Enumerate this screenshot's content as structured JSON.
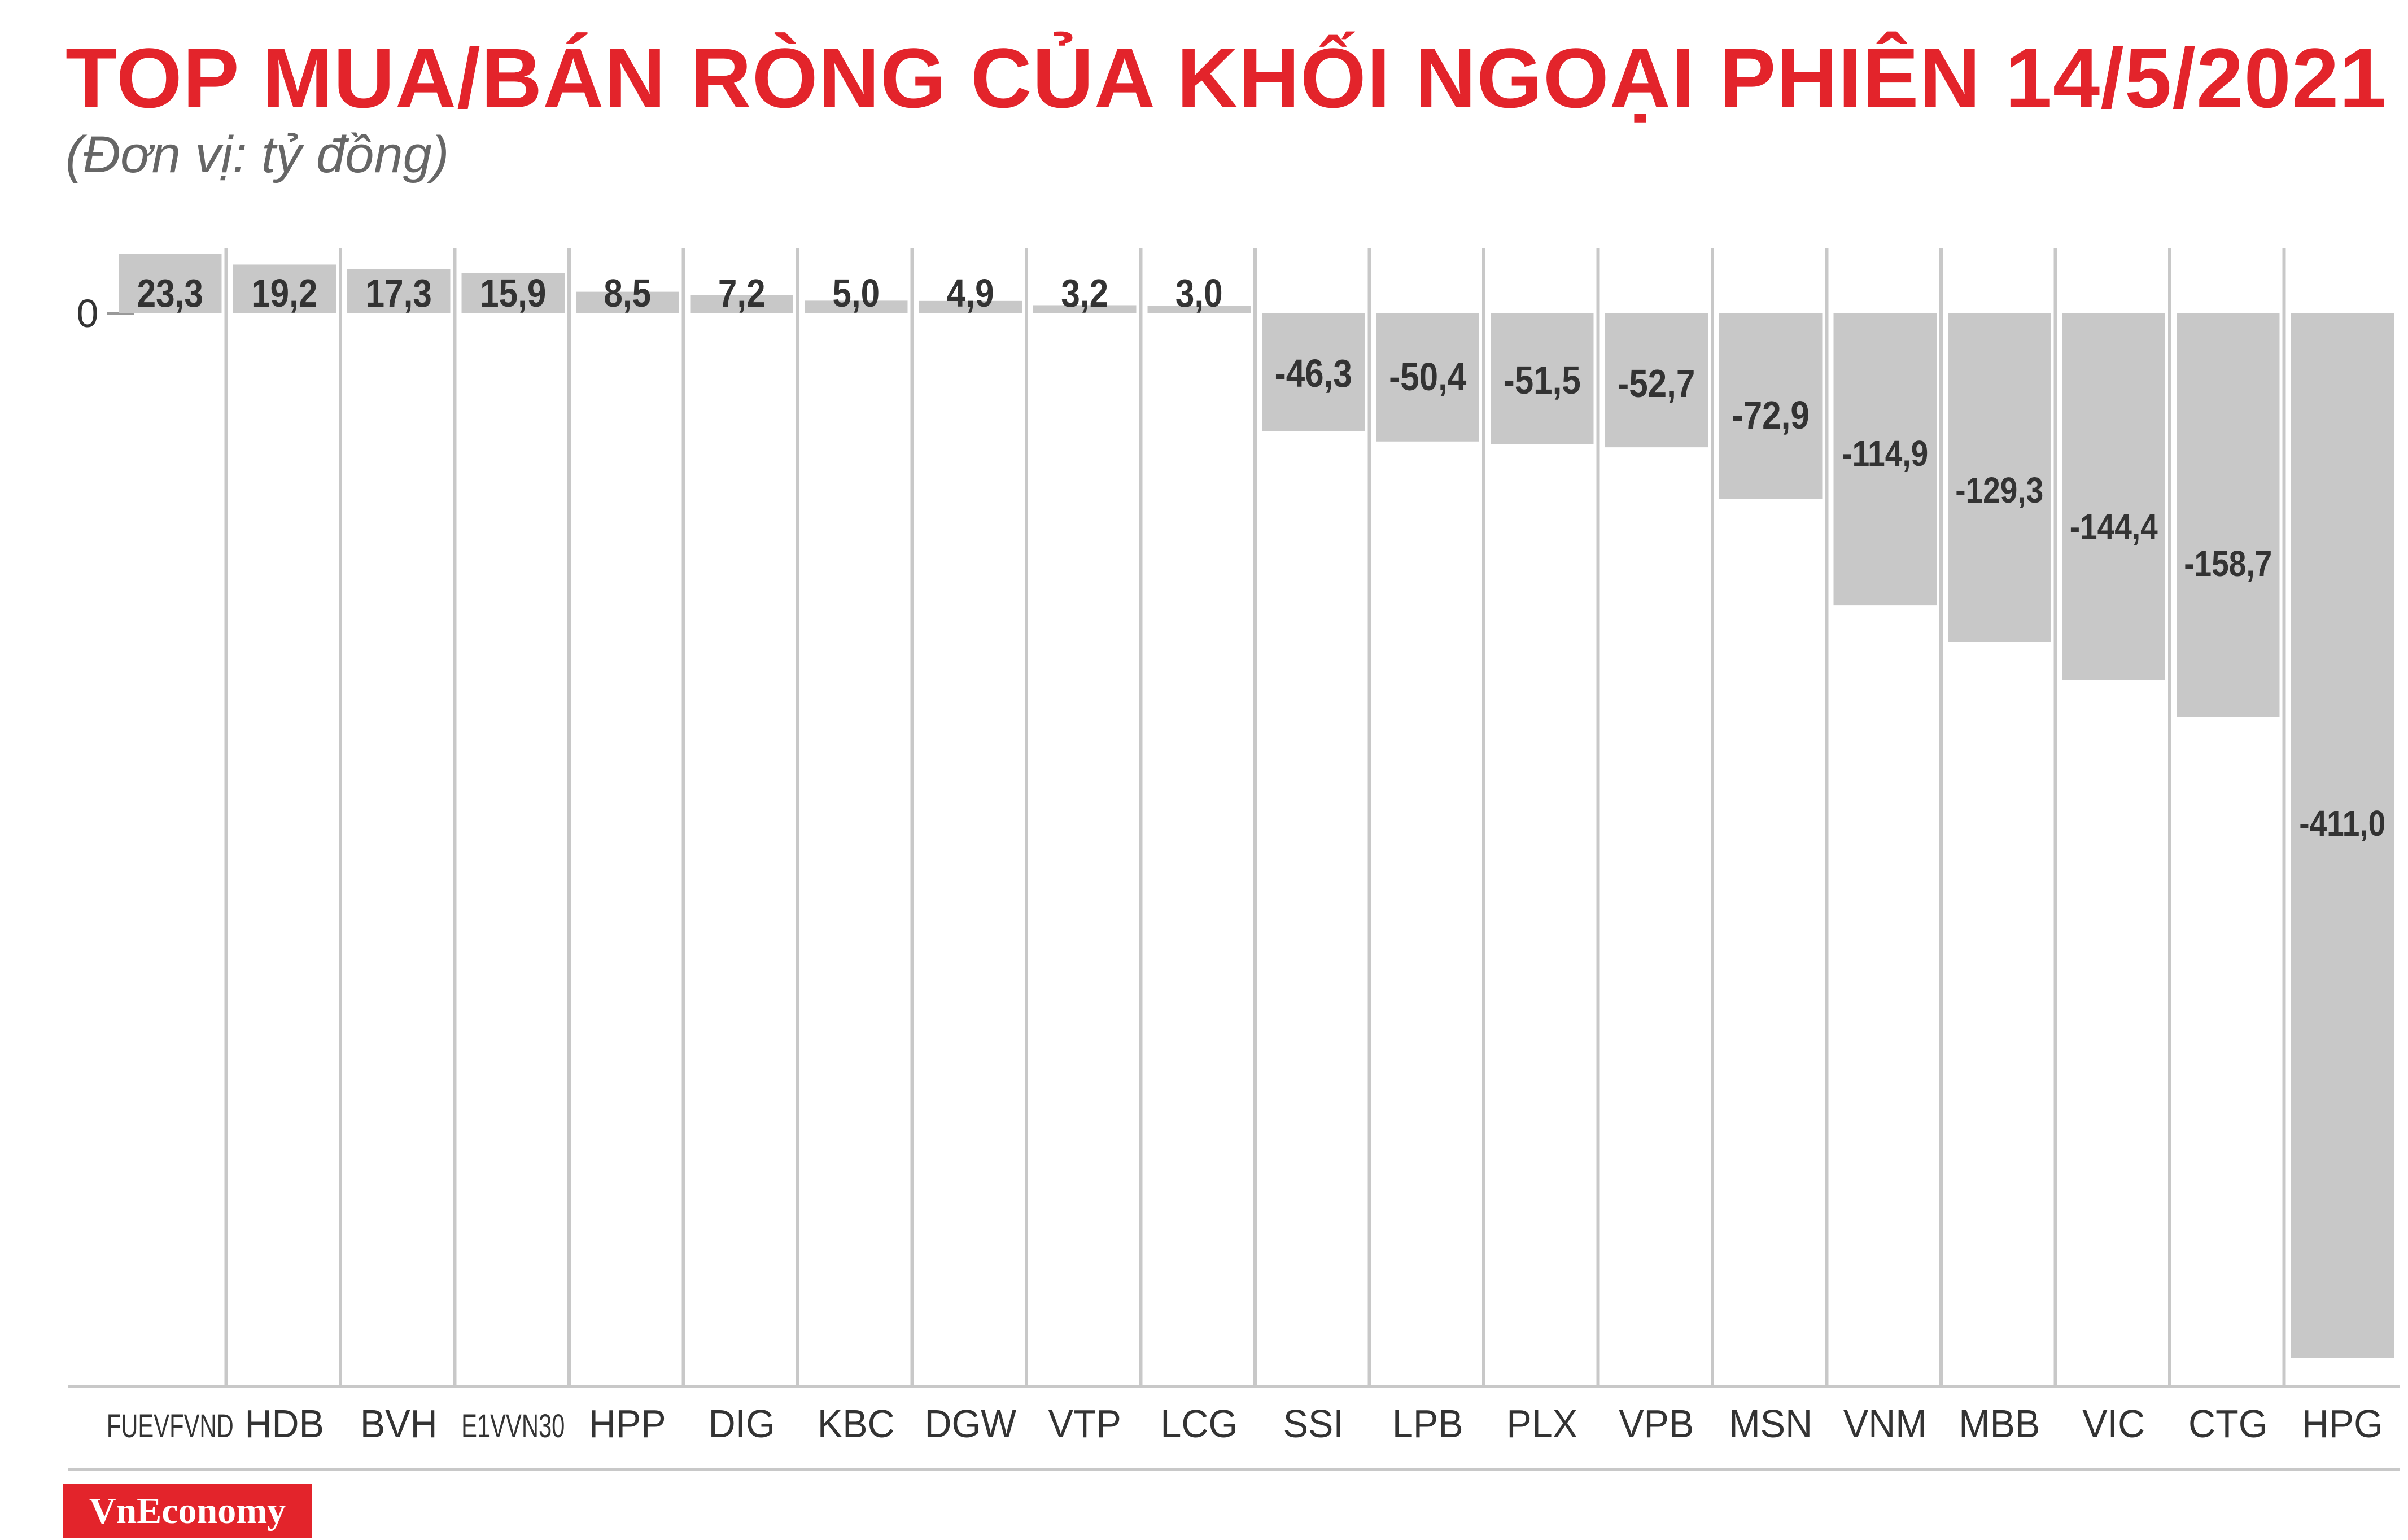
{
  "header": {
    "title": "TOP MUA/BÁN RÒNG CỦA KHỐI NGOẠI PHIÊN 14/5/2021",
    "unit": "(Đơn vị: tỷ đồng)"
  },
  "brand": {
    "logo_text": "VnEconomy"
  },
  "colors": {
    "bar": "#c8c8c8",
    "title": "#e3242b",
    "value_label": "#333333",
    "axis": "#c8c8c8"
  },
  "chart_data": {
    "type": "bar",
    "title": "TOP MUA/BÁN RÒNG CỦA KHỐI NGOẠI PHIÊN 14/5/2021",
    "unit": "(Đơn vị: tỷ đồng)",
    "categories": [
      "FUEVFVND",
      "HDB",
      "BVH",
      "E1VVN30",
      "HPP",
      "DIG",
      "KBC",
      "DGW",
      "VTP",
      "LCG",
      "SSI",
      "LPB",
      "PLX",
      "VPB",
      "MSN",
      "VNM",
      "MBB",
      "VIC",
      "CTG",
      "HPG"
    ],
    "values": [
      23.3,
      19.2,
      17.3,
      15.9,
      8.5,
      7.2,
      5.0,
      4.9,
      3.2,
      3.0,
      -46.3,
      -50.4,
      -51.5,
      -52.7,
      -72.9,
      -114.9,
      -129.3,
      -144.4,
      -158.7,
      -411.0
    ],
    "value_labels": [
      "23,3",
      "19,2",
      "17,3",
      "15,9",
      "8,5",
      "7,2",
      "5,0",
      "4,9",
      "3,2",
      "3,0",
      "-46,3",
      "-50,4",
      "-51,5",
      "-52,7",
      "-72,9",
      "-114,9",
      "-129,3",
      "-144,4",
      "-158,7",
      "-411,0"
    ],
    "y_tick_labels": [
      "0"
    ],
    "ylim": [
      -411.0,
      23.3
    ],
    "grid": "vertical separators",
    "legend": "none",
    "xlabel": "",
    "ylabel": ""
  }
}
